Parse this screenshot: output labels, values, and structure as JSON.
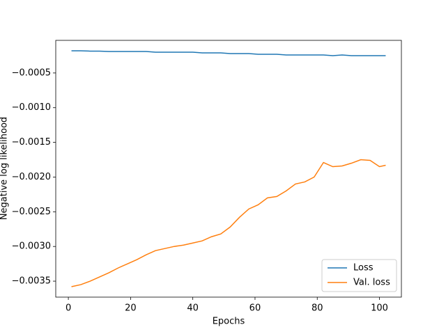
{
  "chart_data": {
    "type": "line",
    "xlabel": "Epochs",
    "ylabel": "Negative log likelihood",
    "x": [
      1,
      4,
      7,
      10,
      13,
      16,
      19,
      22,
      25,
      28,
      31,
      34,
      37,
      40,
      43,
      46,
      49,
      52,
      55,
      58,
      61,
      64,
      67,
      70,
      73,
      76,
      79,
      82,
      85,
      88,
      91,
      94,
      97,
      100,
      102
    ],
    "series": [
      {
        "name": "Loss",
        "color": "#1f77b4",
        "values": [
          -0.00018,
          -0.00018,
          -0.000185,
          -0.000185,
          -0.00019,
          -0.00019,
          -0.00019,
          -0.00019,
          -0.00019,
          -0.0002,
          -0.0002,
          -0.0002,
          -0.0002,
          -0.0002,
          -0.00021,
          -0.00021,
          -0.00021,
          -0.00022,
          -0.00022,
          -0.00022,
          -0.00023,
          -0.00023,
          -0.00023,
          -0.00024,
          -0.00024,
          -0.00024,
          -0.00024,
          -0.00024,
          -0.00025,
          -0.00024,
          -0.00025,
          -0.00025,
          -0.00025,
          -0.00025,
          -0.00025
        ]
      },
      {
        "name": "Val. loss",
        "color": "#ff7f0e",
        "values": [
          -0.00358,
          -0.00355,
          -0.0035,
          -0.00344,
          -0.00338,
          -0.00331,
          -0.00325,
          -0.00319,
          -0.00312,
          -0.00306,
          -0.00303,
          -0.003,
          -0.00298,
          -0.00295,
          -0.00292,
          -0.00286,
          -0.00282,
          -0.00272,
          -0.00258,
          -0.00246,
          -0.0024,
          -0.0023,
          -0.00228,
          -0.0022,
          -0.0021,
          -0.00207,
          -0.002,
          -0.00179,
          -0.00185,
          -0.00184,
          -0.0018,
          -0.00175,
          -0.00176,
          -0.00185,
          -0.00183
        ]
      }
    ],
    "xlim": [
      -4.05,
      107.05
    ],
    "xticks": [
      0,
      20,
      40,
      60,
      80,
      100
    ],
    "ylim": [
      -0.00373,
      -3e-05
    ],
    "yticks": [
      {
        "value": -0.0035,
        "label": "−0.0035"
      },
      {
        "value": -0.003,
        "label": "−0.0030"
      },
      {
        "value": -0.0025,
        "label": "−0.0025"
      },
      {
        "value": -0.002,
        "label": "−0.0020"
      },
      {
        "value": -0.0015,
        "label": "−0.0015"
      },
      {
        "value": -0.001,
        "label": "−0.0010"
      },
      {
        "value": -0.0005,
        "label": "−0.0005"
      }
    ],
    "legend": "lower right"
  }
}
